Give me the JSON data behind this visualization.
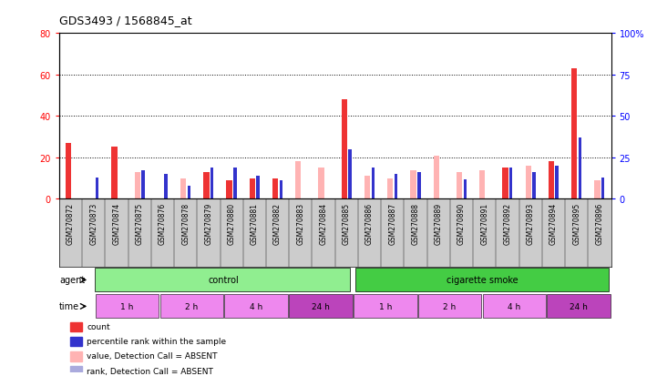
{
  "title": "GDS3493 / 1568845_at",
  "samples": [
    "GSM270872",
    "GSM270873",
    "GSM270874",
    "GSM270875",
    "GSM270876",
    "GSM270878",
    "GSM270879",
    "GSM270880",
    "GSM270881",
    "GSM270882",
    "GSM270883",
    "GSM270884",
    "GSM270885",
    "GSM270886",
    "GSM270887",
    "GSM270888",
    "GSM270889",
    "GSM270890",
    "GSM270891",
    "GSM270892",
    "GSM270893",
    "GSM270894",
    "GSM270895",
    "GSM270896"
  ],
  "count_values": [
    27,
    0,
    25,
    13,
    0,
    10,
    13,
    9,
    10,
    10,
    18,
    15,
    48,
    11,
    10,
    14,
    21,
    13,
    14,
    15,
    16,
    18,
    63,
    9
  ],
  "rank_values": [
    0,
    13,
    0,
    17,
    15,
    8,
    19,
    19,
    14,
    11,
    0,
    0,
    30,
    19,
    15,
    16,
    0,
    12,
    0,
    19,
    16,
    20,
    37,
    13
  ],
  "count_color": "#EE3333",
  "rank_color": "#3333CC",
  "absent_count_color": "#FFB3B3",
  "absent_rank_color": "#AAAADD",
  "absent_count": [
    false,
    true,
    false,
    true,
    true,
    true,
    false,
    false,
    false,
    false,
    true,
    true,
    false,
    true,
    true,
    true,
    true,
    true,
    true,
    false,
    true,
    false,
    false,
    true
  ],
  "absent_rank": [
    true,
    false,
    true,
    false,
    false,
    false,
    false,
    false,
    false,
    false,
    true,
    true,
    false,
    false,
    false,
    false,
    true,
    false,
    true,
    false,
    false,
    false,
    false,
    false
  ],
  "ylim_left": [
    0,
    80
  ],
  "ylim_right": [
    0,
    100
  ],
  "yticks_left": [
    0,
    20,
    40,
    60,
    80
  ],
  "yticks_right": [
    0,
    25,
    50,
    75,
    100
  ],
  "agent_control_color": "#90EE90",
  "agent_smoke_color": "#44CC44",
  "time_color_light": "#EE88EE",
  "time_color_dark": "#BB44BB",
  "legend_items": [
    {
      "label": "count",
      "color": "#EE3333"
    },
    {
      "label": "percentile rank within the sample",
      "color": "#3333CC"
    },
    {
      "label": "value, Detection Call = ABSENT",
      "color": "#FFB3B3"
    },
    {
      "label": "rank, Detection Call = ABSENT",
      "color": "#AAAADD"
    }
  ],
  "time_labels": [
    "1 h",
    "2 h",
    "4 h",
    "24 h",
    "1 h",
    "2 h",
    "4 h",
    "24 h"
  ],
  "time_sizes": [
    3,
    3,
    3,
    3,
    3,
    3,
    3,
    3
  ],
  "label_area_color": "#CCCCCC"
}
